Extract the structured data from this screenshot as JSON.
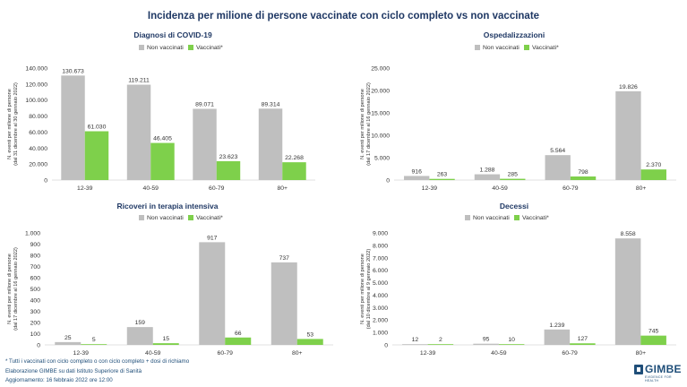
{
  "page": {
    "title": "Incidenza per milione di persone vaccinate con ciclo completo vs non vaccinate",
    "footnote": "* Tutti i vaccinati con ciclo completo o con ciclo completo + dosi di richiamo",
    "source": "Elaborazione GIMBE su dati Istituto Superiore di Sanità",
    "updated": "Aggiornamento: 16 febbraio 2022 ore 12:00",
    "logo_text": "GIMBE",
    "logo_sub": "EVIDENCE FOR HEALTH"
  },
  "colors": {
    "non_vaccinati": "#bfbfbf",
    "vaccinati": "#7ed04b"
  },
  "chart_data": [
    {
      "type": "bar",
      "title": "Diagnosi di COVID-19",
      "ylabel": [
        "N. eventi per milione di persone",
        "(dal 31 dicembre al 30 gennaio 2022)"
      ],
      "categories": [
        "12-39",
        "40-59",
        "60-79",
        "80+"
      ],
      "ylim": [
        0,
        140000
      ],
      "yticks": [
        0,
        20000,
        40000,
        60000,
        80000,
        100000,
        120000,
        140000
      ],
      "ytick_labels": [
        "0",
        "20.000",
        "40.000",
        "60.000",
        "80.000",
        "100.000",
        "120.000",
        "140.000"
      ],
      "series": [
        {
          "name": "Non vaccinati",
          "values": [
            130673,
            119211,
            89071,
            89314
          ],
          "labels": [
            "130.673",
            "119.211",
            "89.071",
            "89.314"
          ]
        },
        {
          "name": "Vaccinati*",
          "values": [
            61030,
            46405,
            23623,
            22268
          ],
          "labels": [
            "61.030",
            "46.405",
            "23.623",
            "22.268"
          ]
        }
      ],
      "legend": "top-left"
    },
    {
      "type": "bar",
      "title": "Ospedalizzazioni",
      "ylabel": [
        "N. eventi per milione di persone",
        "(dal 17 dicembre al 16 gennaio 2022)"
      ],
      "categories": [
        "12-39",
        "40-59",
        "60-79",
        "80+"
      ],
      "ylim": [
        0,
        25000
      ],
      "yticks": [
        0,
        5000,
        10000,
        15000,
        20000,
        25000
      ],
      "ytick_labels": [
        "0",
        "5.000",
        "10.000",
        "15.000",
        "20.000",
        "25.000"
      ],
      "series": [
        {
          "name": "Non vaccinati",
          "values": [
            916,
            1288,
            5564,
            19826
          ],
          "labels": [
            "916",
            "1.288",
            "5.564",
            "19.826"
          ]
        },
        {
          "name": "Vaccinati*",
          "values": [
            263,
            285,
            798,
            2370
          ],
          "labels": [
            "263",
            "285",
            "798",
            "2.370"
          ]
        }
      ],
      "legend": "top-left"
    },
    {
      "type": "bar",
      "title": "Ricoveri in terapia intensiva",
      "ylabel": [
        "N. eventi per milione di persone",
        "(dal 17 dicembre al 16 gennaio 2022)"
      ],
      "categories": [
        "12-39",
        "40-59",
        "60-79",
        "80+"
      ],
      "ylim": [
        0,
        1000
      ],
      "yticks": [
        0,
        100,
        200,
        300,
        400,
        500,
        600,
        700,
        800,
        900,
        1000
      ],
      "ytick_labels": [
        "0",
        "100",
        "200",
        "300",
        "400",
        "500",
        "600",
        "700",
        "800",
        "900",
        "1.000"
      ],
      "series": [
        {
          "name": "Non vaccinati",
          "values": [
            25,
            159,
            917,
            737
          ],
          "labels": [
            "25",
            "159",
            "917",
            "737"
          ]
        },
        {
          "name": "Vaccinati*",
          "values": [
            5,
            15,
            66,
            53
          ],
          "labels": [
            "5",
            "15",
            "66",
            "53"
          ]
        }
      ],
      "legend": "top-left"
    },
    {
      "type": "bar",
      "title": "Decessi",
      "ylabel": [
        "N. eventi per milione di persone",
        "(dal 10 dicembre al 9 gennaio 2022)"
      ],
      "categories": [
        "12-39",
        "40-59",
        "60-79",
        "80+"
      ],
      "ylim": [
        0,
        9000
      ],
      "yticks": [
        0,
        1000,
        2000,
        3000,
        4000,
        5000,
        6000,
        7000,
        8000,
        9000
      ],
      "ytick_labels": [
        "0",
        "1.000",
        "2.000",
        "3.000",
        "4.000",
        "5.000",
        "6.000",
        "7.000",
        "8.000",
        "9.000"
      ],
      "series": [
        {
          "name": "Non vaccinati",
          "values": [
            12,
            95,
            1239,
            8558
          ],
          "labels": [
            "12",
            "95",
            "1.239",
            "8.558"
          ]
        },
        {
          "name": "Vaccinati*",
          "values": [
            2,
            10,
            127,
            745
          ],
          "labels": [
            "2",
            "10",
            "127",
            "745"
          ]
        }
      ],
      "legend": "top-left"
    }
  ]
}
